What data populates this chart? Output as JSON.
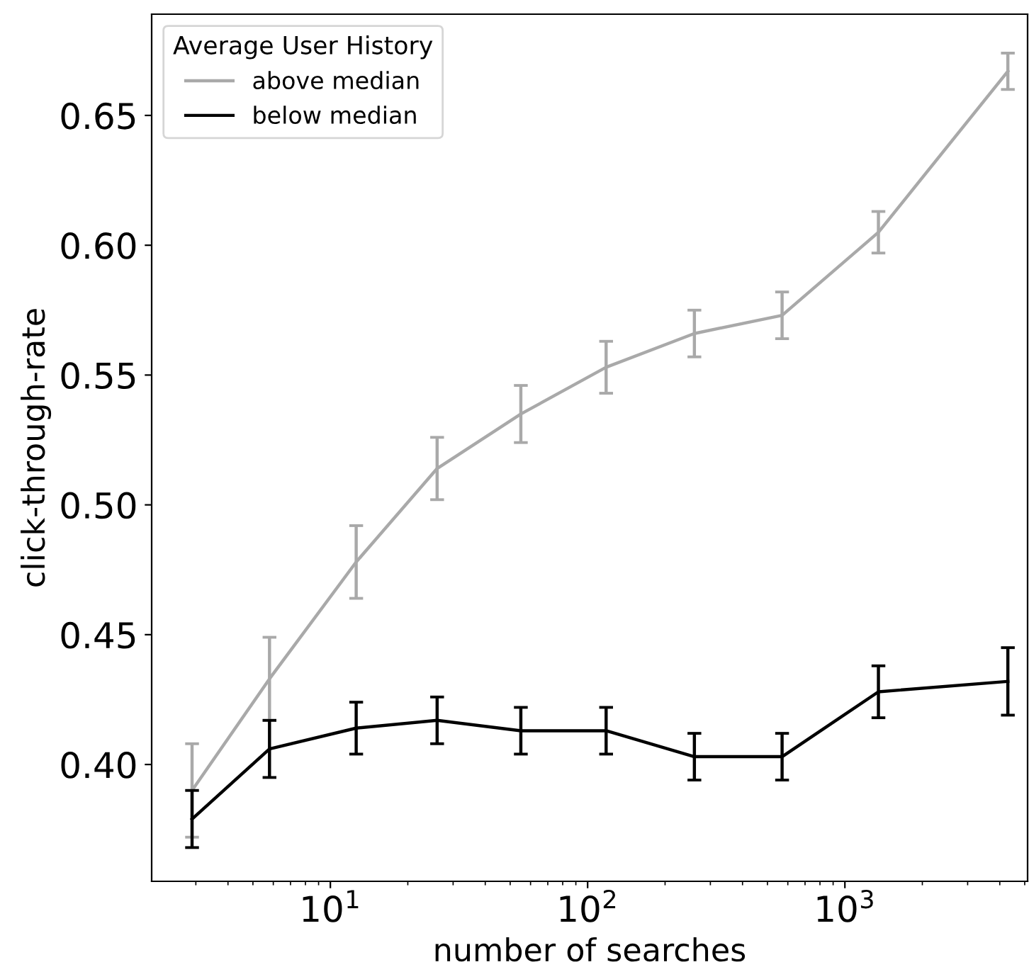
{
  "chart_data": {
    "type": "line",
    "xlabel": "number of searches",
    "ylabel": "click-through-rate",
    "legend_title": "Average User History",
    "log": "x",
    "xlim": [
      2.02,
      5130
    ],
    "xticks": [
      {
        "value": 10,
        "label": "10$^{1}$"
      },
      {
        "value": 100,
        "label": "10$^{2}$"
      },
      {
        "value": 1000,
        "label": "10$^{3}$"
      }
    ],
    "ylim": [
      0.355,
      0.689
    ],
    "yticks": [
      {
        "value": 0.4,
        "label": "0.40"
      },
      0.45,
      {
        "value": 0.5,
        "label": "0.50"
      },
      0.55,
      {
        "value": 0.6,
        "label": "0.60"
      },
      0.65
    ],
    "grid": false,
    "legend": "top left",
    "marker": "none",
    "line_style": "solid",
    "series": [
      {
        "name": "above median",
        "color": "#a9a9a9",
        "x": [
          2.9,
          5.8,
          12.6,
          26,
          55,
          118,
          260,
          570,
          1350,
          4300
        ],
        "values": [
          0.39,
          0.433,
          0.478,
          0.514,
          0.535,
          0.553,
          0.566,
          0.573,
          0.605,
          0.667
        ],
        "errors": [
          0.018,
          0.016,
          0.014,
          0.012,
          0.011,
          0.01,
          0.009,
          0.009,
          0.008,
          0.007
        ]
      },
      {
        "name": "below median",
        "color": "#000000",
        "x": [
          2.9,
          5.8,
          12.6,
          26,
          55,
          118,
          260,
          570,
          1350,
          4300
        ],
        "values": [
          0.379,
          0.406,
          0.414,
          0.417,
          0.413,
          0.413,
          0.403,
          0.403,
          0.428,
          0.432
        ],
        "errors": [
          0.011,
          0.011,
          0.01,
          0.009,
          0.009,
          0.009,
          0.009,
          0.009,
          0.01,
          0.013
        ]
      }
    ]
  }
}
